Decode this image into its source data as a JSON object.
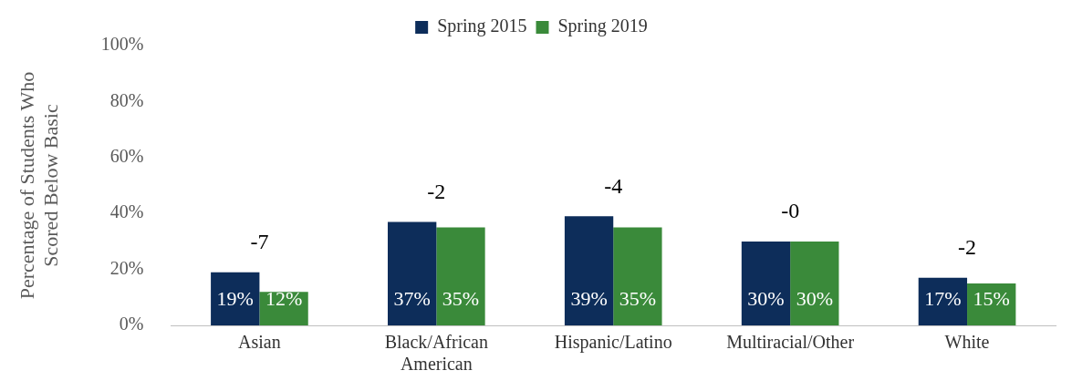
{
  "chart_data": {
    "type": "bar",
    "ylabel": "Percentage of Students Who Scored Below Basic",
    "categories": [
      "Asian",
      "Black/African American",
      "Hispanic/Latino",
      "Multiracial/Other",
      "White"
    ],
    "series": [
      {
        "name": "Spring 2015",
        "color": "#0d2d5a",
        "values": [
          19,
          37,
          39,
          30,
          17
        ],
        "value_labels": [
          "19%",
          "37%",
          "39%",
          "30%",
          "17%"
        ]
      },
      {
        "name": "Spring 2019",
        "color": "#3a8a3a",
        "values": [
          12,
          35,
          35,
          30,
          15
        ],
        "value_labels": [
          "12%",
          "35%",
          "35%",
          "30%",
          "15%"
        ]
      }
    ],
    "ylim": [
      0,
      100
    ],
    "yticks": [
      {
        "value": 0,
        "label": "0%"
      },
      {
        "value": 20,
        "label": "20%"
      },
      {
        "value": 40,
        "label": "40%"
      },
      {
        "value": 60,
        "label": "60%"
      },
      {
        "value": 80,
        "label": "80%"
      },
      {
        "value": 100,
        "label": "100%"
      }
    ],
    "annotations": [
      "-7",
      "-2",
      "-4",
      "-0",
      "-2"
    ],
    "grid": false,
    "legend": "top"
  }
}
